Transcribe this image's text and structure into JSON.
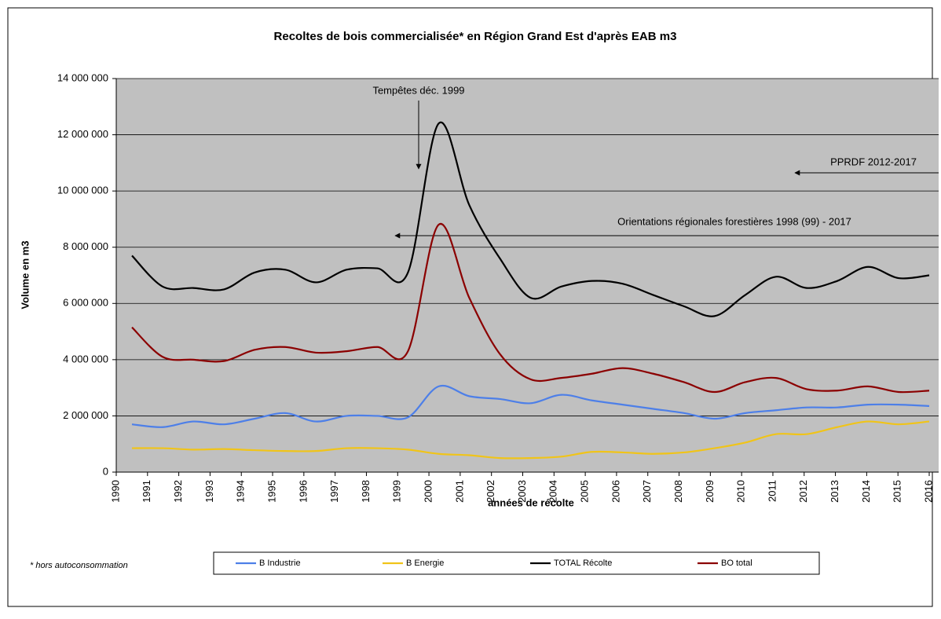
{
  "chart_data": {
    "type": "line",
    "title": "Recoltes de bois commercialisée* en Région Grand Est d'après EAB m3",
    "y_label": "Volume en m3",
    "x_label": "années de récolte",
    "footnote": "* hors autoconsommation",
    "annotations": [
      "Tempêtes déc. 1999",
      "PPRDF 2012-2017",
      "Orientations régionales forestières 1998 (99) - 2017"
    ],
    "categories": [
      "1990",
      "1991",
      "1992",
      "1993",
      "1994",
      "1995",
      "1996",
      "1997",
      "1998",
      "1999",
      "2000",
      "2001",
      "2002",
      "2003",
      "2004",
      "2005",
      "2006",
      "2007",
      "2008",
      "2009",
      "2010",
      "2011",
      "2012",
      "2013",
      "2014",
      "2015",
      "2016"
    ],
    "ylim": [
      0,
      14000000
    ],
    "yticks": [
      0,
      {
        "value": 2000000,
        "label": "2 000 000"
      },
      {
        "value": 4000000,
        "label": "4 000 000"
      },
      {
        "value": 6000000,
        "label": "6 000 000"
      },
      {
        "value": 8000000,
        "label": "8 000 000"
      },
      {
        "value": 10000000,
        "label": "10 000 000"
      },
      {
        "value": 12000000,
        "label": "12 000 000"
      },
      {
        "value": 14000000,
        "label": "14 000 000"
      }
    ],
    "grid": true,
    "series": [
      {
        "name": "B Industrie",
        "color": "#4d7fe8",
        "values": [
          1700000,
          1600000,
          1800000,
          1700000,
          1900000,
          2100000,
          1800000,
          2000000,
          2000000,
          1950000,
          3050000,
          2700000,
          2600000,
          2450000,
          2750000,
          2550000,
          2400000,
          2250000,
          2100000,
          1900000,
          2100000,
          2200000,
          2300000,
          2300000,
          2400000,
          2400000,
          2350000
        ]
      },
      {
        "name": "B Energie",
        "color": "#f0c419",
        "values": [
          850000,
          850000,
          800000,
          820000,
          780000,
          750000,
          750000,
          850000,
          850000,
          800000,
          650000,
          600000,
          500000,
          500000,
          550000,
          720000,
          700000,
          650000,
          700000,
          850000,
          1050000,
          1350000,
          1350000,
          1600000,
          1800000,
          1700000,
          1800000
        ]
      },
      {
        "name": "TOTAL Récolte",
        "color": "#000000",
        "values": [
          7700000,
          6600000,
          6550000,
          6500000,
          7100000,
          7200000,
          6750000,
          7200000,
          7250000,
          7100000,
          12400000,
          9500000,
          7600000,
          6200000,
          6600000,
          6800000,
          6700000,
          6300000,
          5900000,
          5550000,
          6300000,
          6950000,
          6550000,
          6800000,
          7300000,
          6900000,
          7000000
        ]
      },
      {
        "name": "BO total",
        "color": "#8b0000",
        "values": [
          5150000,
          4100000,
          4000000,
          3950000,
          4350000,
          4450000,
          4250000,
          4300000,
          4450000,
          4300000,
          8800000,
          6200000,
          4200000,
          3300000,
          3350000,
          3500000,
          3700000,
          3500000,
          3200000,
          2850000,
          3200000,
          3350000,
          2950000,
          2900000,
          3050000,
          2850000,
          2900000
        ]
      }
    ]
  }
}
